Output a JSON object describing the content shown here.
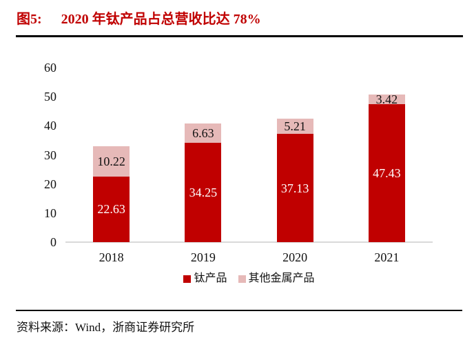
{
  "header": {
    "figure_label": "图5:",
    "title": "2020 年钛产品占总营收比达 78%",
    "title_color": "#c00000"
  },
  "chart_data": {
    "type": "bar",
    "stacked": true,
    "title": "2020 年钛产品占总营收比达 78%",
    "categories": [
      "2018",
      "2019",
      "2020",
      "2021"
    ],
    "series": [
      {
        "name": "钛产品",
        "color": "#c00000",
        "label_color": "#ffffff",
        "values": [
          22.63,
          34.25,
          37.13,
          47.43
        ]
      },
      {
        "name": "其他金属产品",
        "color": "#e6b9b8",
        "label_color": "#111111",
        "values": [
          10.22,
          6.63,
          5.21,
          3.42
        ]
      }
    ],
    "xlabel": "",
    "ylabel": "",
    "ylim": [
      0,
      60
    ],
    "yticks": [
      0,
      10,
      20,
      30,
      40,
      50,
      60
    ],
    "grid": false,
    "legend_position": "bottom",
    "axis_line_color": "#d9d9d9",
    "tick_label_color": "#111111"
  },
  "footer": {
    "source": "资料来源：Wind，浙商证券研究所"
  }
}
